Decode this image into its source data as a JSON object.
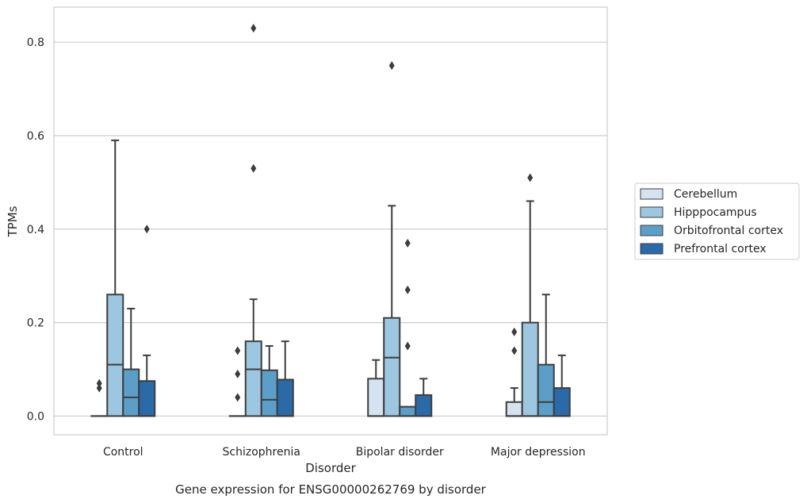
{
  "chart_data": {
    "type": "box",
    "title": "",
    "caption": "Gene expression for ENSG00000262769 by disorder",
    "xlabel": "Disorder",
    "ylabel": "TPMs",
    "ylim": [
      -0.04,
      0.875
    ],
    "yticks": [
      0.0,
      0.2,
      0.4,
      0.6,
      0.8
    ],
    "ytick_labels": [
      "0.0",
      "0.2",
      "0.4",
      "0.6",
      "0.8"
    ],
    "grid": true,
    "legend_placement": "center-right",
    "categories": [
      "Control",
      "Schizophrenia",
      "Bipolar disorder",
      "Major depression"
    ],
    "series": [
      {
        "name": "Cerebellum",
        "color": "#d5e3f1",
        "boxes": [
          {
            "whislo": 0.0,
            "q1": 0.0,
            "med": 0.0,
            "q3": 0.0,
            "whishi": 0.0,
            "fliers": [
              0.06,
              0.07
            ]
          },
          {
            "whislo": 0.0,
            "q1": 0.0,
            "med": 0.0,
            "q3": 0.0,
            "whishi": 0.0,
            "fliers": [
              0.04,
              0.09,
              0.14
            ]
          },
          {
            "whislo": 0.0,
            "q1": 0.0,
            "med": 0.0,
            "q3": 0.08,
            "whishi": 0.12,
            "fliers": []
          },
          {
            "whislo": 0.0,
            "q1": 0.0,
            "med": 0.0,
            "q3": 0.03,
            "whishi": 0.06,
            "fliers": [
              0.14,
              0.18
            ]
          }
        ]
      },
      {
        "name": "Hipppocampus",
        "color": "#9dc6e0",
        "boxes": [
          {
            "whislo": 0.0,
            "q1": 0.0,
            "med": 0.11,
            "q3": 0.26,
            "whishi": 0.59,
            "fliers": []
          },
          {
            "whislo": 0.0,
            "q1": 0.0,
            "med": 0.1,
            "q3": 0.16,
            "whishi": 0.25,
            "fliers": [
              0.53,
              0.83
            ]
          },
          {
            "whislo": 0.0,
            "q1": 0.0,
            "med": 0.125,
            "q3": 0.21,
            "whishi": 0.45,
            "fliers": [
              0.75
            ]
          },
          {
            "whislo": 0.0,
            "q1": 0.0,
            "med": 0.0,
            "q3": 0.2,
            "whishi": 0.46,
            "fliers": [
              0.51
            ]
          }
        ]
      },
      {
        "name": "Orbitofrontal cortex",
        "color": "#5b9fc9",
        "boxes": [
          {
            "whislo": 0.0,
            "q1": 0.0,
            "med": 0.04,
            "q3": 0.1,
            "whishi": 0.23,
            "fliers": []
          },
          {
            "whislo": 0.0,
            "q1": 0.0,
            "med": 0.035,
            "q3": 0.098,
            "whishi": 0.15,
            "fliers": []
          },
          {
            "whislo": 0.0,
            "q1": 0.0,
            "med": 0.0,
            "q3": 0.02,
            "whishi": 0.02,
            "fliers": [
              0.15,
              0.27,
              0.37
            ]
          },
          {
            "whislo": 0.0,
            "q1": 0.0,
            "med": 0.03,
            "q3": 0.11,
            "whishi": 0.26,
            "fliers": []
          }
        ]
      },
      {
        "name": "Prefrontal cortex",
        "color": "#2b6aa8",
        "boxes": [
          {
            "whislo": 0.0,
            "q1": 0.0,
            "med": 0.0,
            "q3": 0.075,
            "whishi": 0.13,
            "fliers": [
              0.4
            ]
          },
          {
            "whislo": 0.0,
            "q1": 0.0,
            "med": 0.0,
            "q3": 0.078,
            "whishi": 0.16,
            "fliers": []
          },
          {
            "whislo": 0.0,
            "q1": 0.0,
            "med": 0.0,
            "q3": 0.045,
            "whishi": 0.08,
            "fliers": []
          },
          {
            "whislo": 0.0,
            "q1": 0.0,
            "med": 0.0,
            "q3": 0.06,
            "whishi": 0.13,
            "fliers": []
          }
        ]
      }
    ]
  }
}
